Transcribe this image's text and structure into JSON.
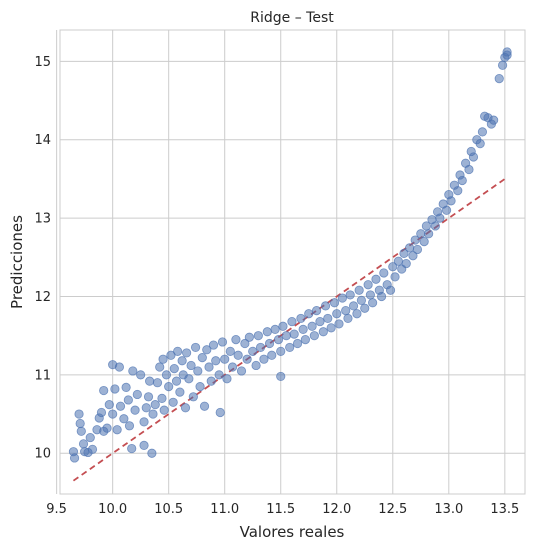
{
  "chart_data": {
    "type": "scatter",
    "title": "Ridge – Test",
    "xlabel": "Valores reales",
    "ylabel": "Predicciones",
    "xlim": [
      9.53,
      13.68
    ],
    "ylim": [
      9.48,
      15.4
    ],
    "xticks": [
      9.5,
      10.0,
      10.5,
      11.0,
      11.5,
      12.0,
      12.5,
      13.0,
      13.5
    ],
    "xtick_labels": [
      "9.5",
      "10.0",
      "10.5",
      "11.0",
      "11.5",
      "12.0",
      "12.5",
      "13.0",
      "13.5"
    ],
    "yticks": [
      10,
      11,
      12,
      13,
      14,
      15
    ],
    "ytick_labels": [
      "10",
      "11",
      "12",
      "13",
      "14",
      "15"
    ],
    "grid": true,
    "reference_line": {
      "style": "dashed",
      "color": "#c44e52",
      "x": [
        9.65,
        13.52
      ],
      "y": [
        9.65,
        13.52
      ]
    },
    "marker_color": "#4c72b0",
    "marker_alpha": 0.55,
    "series": [
      {
        "values": [
          [
            9.65,
            10.02
          ],
          [
            9.66,
            9.94
          ],
          [
            9.7,
            10.5
          ],
          [
            9.71,
            10.38
          ],
          [
            9.72,
            10.28
          ],
          [
            9.74,
            10.12
          ],
          [
            9.75,
            10.02
          ],
          [
            9.78,
            10.01
          ],
          [
            9.8,
            10.2
          ],
          [
            9.82,
            10.05
          ],
          [
            9.86,
            10.3
          ],
          [
            9.88,
            10.45
          ],
          [
            9.9,
            10.52
          ],
          [
            9.92,
            10.8
          ],
          [
            9.92,
            10.28
          ],
          [
            9.95,
            10.32
          ],
          [
            9.97,
            10.62
          ],
          [
            10.0,
            11.13
          ],
          [
            10.0,
            10.5
          ],
          [
            10.02,
            10.82
          ],
          [
            10.04,
            10.3
          ],
          [
            10.06,
            11.1
          ],
          [
            10.07,
            10.6
          ],
          [
            10.1,
            10.44
          ],
          [
            10.12,
            10.84
          ],
          [
            10.14,
            10.68
          ],
          [
            10.15,
            10.35
          ],
          [
            10.17,
            10.06
          ],
          [
            10.18,
            11.05
          ],
          [
            10.2,
            10.55
          ],
          [
            10.22,
            10.75
          ],
          [
            10.25,
            11.0
          ],
          [
            10.28,
            10.4
          ],
          [
            10.28,
            10.1
          ],
          [
            10.3,
            10.58
          ],
          [
            10.32,
            10.72
          ],
          [
            10.33,
            10.92
          ],
          [
            10.35,
            10.0
          ],
          [
            10.36,
            10.5
          ],
          [
            10.38,
            10.62
          ],
          [
            10.4,
            10.9
          ],
          [
            10.42,
            11.1
          ],
          [
            10.44,
            10.7
          ],
          [
            10.45,
            11.2
          ],
          [
            10.46,
            10.55
          ],
          [
            10.48,
            11.0
          ],
          [
            10.5,
            10.85
          ],
          [
            10.52,
            11.25
          ],
          [
            10.54,
            10.65
          ],
          [
            10.55,
            11.08
          ],
          [
            10.57,
            10.92
          ],
          [
            10.58,
            11.3
          ],
          [
            10.6,
            10.78
          ],
          [
            10.62,
            11.18
          ],
          [
            10.63,
            11.0
          ],
          [
            10.65,
            10.58
          ],
          [
            10.66,
            11.28
          ],
          [
            10.68,
            10.95
          ],
          [
            10.7,
            11.12
          ],
          [
            10.72,
            10.72
          ],
          [
            10.74,
            11.35
          ],
          [
            10.76,
            11.05
          ],
          [
            10.78,
            10.85
          ],
          [
            10.8,
            11.22
          ],
          [
            10.82,
            10.6
          ],
          [
            10.84,
            11.32
          ],
          [
            10.86,
            11.1
          ],
          [
            10.88,
            10.92
          ],
          [
            10.9,
            11.38
          ],
          [
            10.92,
            11.18
          ],
          [
            10.95,
            11.0
          ],
          [
            10.96,
            10.52
          ],
          [
            10.98,
            11.42
          ],
          [
            11.0,
            11.2
          ],
          [
            11.02,
            10.95
          ],
          [
            11.05,
            11.3
          ],
          [
            11.07,
            11.1
          ],
          [
            11.1,
            11.45
          ],
          [
            11.12,
            11.25
          ],
          [
            11.15,
            11.05
          ],
          [
            11.18,
            11.4
          ],
          [
            11.2,
            11.2
          ],
          [
            11.22,
            11.48
          ],
          [
            11.25,
            11.3
          ],
          [
            11.28,
            11.12
          ],
          [
            11.3,
            11.5
          ],
          [
            11.32,
            11.35
          ],
          [
            11.35,
            11.2
          ],
          [
            11.38,
            11.55
          ],
          [
            11.4,
            11.4
          ],
          [
            11.42,
            11.25
          ],
          [
            11.45,
            11.58
          ],
          [
            11.48,
            11.45
          ],
          [
            11.5,
            11.3
          ],
          [
            11.5,
            10.98
          ],
          [
            11.52,
            11.62
          ],
          [
            11.55,
            11.5
          ],
          [
            11.58,
            11.35
          ],
          [
            11.6,
            11.68
          ],
          [
            11.62,
            11.52
          ],
          [
            11.65,
            11.4
          ],
          [
            11.68,
            11.72
          ],
          [
            11.7,
            11.58
          ],
          [
            11.72,
            11.45
          ],
          [
            11.75,
            11.78
          ],
          [
            11.78,
            11.62
          ],
          [
            11.8,
            11.5
          ],
          [
            11.82,
            11.82
          ],
          [
            11.85,
            11.68
          ],
          [
            11.88,
            11.55
          ],
          [
            11.9,
            11.88
          ],
          [
            11.92,
            11.72
          ],
          [
            11.95,
            11.6
          ],
          [
            11.98,
            11.92
          ],
          [
            12.0,
            11.78
          ],
          [
            12.02,
            11.65
          ],
          [
            12.05,
            11.98
          ],
          [
            12.08,
            11.82
          ],
          [
            12.1,
            11.72
          ],
          [
            12.12,
            12.02
          ],
          [
            12.15,
            11.88
          ],
          [
            12.18,
            11.78
          ],
          [
            12.2,
            12.08
          ],
          [
            12.22,
            11.95
          ],
          [
            12.25,
            11.85
          ],
          [
            12.28,
            12.15
          ],
          [
            12.3,
            12.02
          ],
          [
            12.32,
            11.92
          ],
          [
            12.35,
            12.22
          ],
          [
            12.38,
            12.08
          ],
          [
            12.4,
            12.0
          ],
          [
            12.42,
            12.3
          ],
          [
            12.45,
            12.15
          ],
          [
            12.48,
            12.08
          ],
          [
            12.5,
            12.38
          ],
          [
            12.52,
            12.25
          ],
          [
            12.55,
            12.45
          ],
          [
            12.58,
            12.35
          ],
          [
            12.6,
            12.55
          ],
          [
            12.62,
            12.42
          ],
          [
            12.65,
            12.62
          ],
          [
            12.68,
            12.52
          ],
          [
            12.7,
            12.72
          ],
          [
            12.72,
            12.6
          ],
          [
            12.75,
            12.8
          ],
          [
            12.78,
            12.7
          ],
          [
            12.8,
            12.9
          ],
          [
            12.82,
            12.8
          ],
          [
            12.85,
            12.98
          ],
          [
            12.88,
            12.9
          ],
          [
            12.9,
            13.08
          ],
          [
            12.92,
            13.0
          ],
          [
            12.95,
            13.18
          ],
          [
            12.98,
            13.1
          ],
          [
            13.0,
            13.3
          ],
          [
            13.02,
            13.22
          ],
          [
            13.05,
            13.42
          ],
          [
            13.08,
            13.35
          ],
          [
            13.1,
            13.55
          ],
          [
            13.12,
            13.48
          ],
          [
            13.15,
            13.7
          ],
          [
            13.18,
            13.62
          ],
          [
            13.2,
            13.85
          ],
          [
            13.22,
            13.78
          ],
          [
            13.25,
            14.0
          ],
          [
            13.28,
            13.95
          ],
          [
            13.3,
            14.1
          ],
          [
            13.32,
            14.3
          ],
          [
            13.35,
            14.28
          ],
          [
            13.38,
            14.2
          ],
          [
            13.4,
            14.25
          ],
          [
            13.45,
            14.78
          ],
          [
            13.48,
            14.95
          ],
          [
            13.5,
            15.05
          ],
          [
            13.52,
            15.12
          ],
          [
            13.52,
            15.08
          ]
        ]
      }
    ]
  }
}
